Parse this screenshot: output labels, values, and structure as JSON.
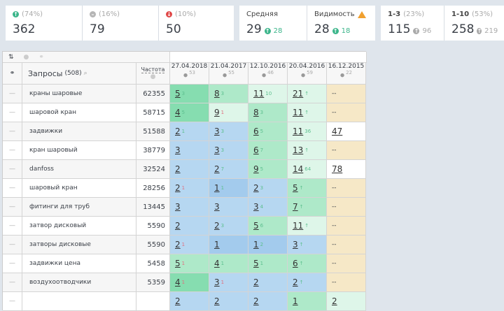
{
  "cards": [
    {
      "icon": "arrow-up-circle-icon",
      "color": "#3bb58a",
      "pct": "(74%)",
      "value": "362"
    },
    {
      "icon": "minus-circle-icon",
      "color": "#b5b5b5",
      "pct": "(16%)",
      "value": "79"
    },
    {
      "icon": "arrow-down-circle-icon",
      "color": "#e04848",
      "pct": "(10%)",
      "value": "50"
    },
    {
      "label": "Средняя",
      "value": "29",
      "sub": "28",
      "subcolor": "#3bb58a"
    },
    {
      "label": "Видимость",
      "value": "28",
      "sub": "18",
      "subcolor": "#3bb58a",
      "warning": true
    },
    {
      "label": "1-3",
      "pct": "(23%)",
      "value": "115",
      "sub": "96",
      "subcolor": "#aaa"
    },
    {
      "label": "1-10",
      "pct": "(53%)",
      "value": "258",
      "sub": "219",
      "subcolor": "#aaa"
    }
  ],
  "table": {
    "query_header": "Запросы",
    "query_count": "(508)",
    "freq_header": "Частота",
    "dates": [
      {
        "date": "27.04.2018",
        "n": "53"
      },
      {
        "date": "21.04.2017",
        "n": "55"
      },
      {
        "date": "12.10.2016",
        "n": "46"
      },
      {
        "date": "20.04.2016",
        "n": "59"
      },
      {
        "date": "16.12.2015",
        "n": "22"
      }
    ],
    "colors": {
      "dg": "#86ddb0",
      "mg": "#aee9c9",
      "lg": "#def6e9",
      "b": "#b6d7f1",
      "db": "#a3cbed",
      "t": "#f6e8c7",
      "w": "#ffffff"
    },
    "rows": [
      {
        "q": "краны шаровые",
        "f": "62355",
        "c": [
          [
            "5",
            "3",
            "up",
            "dg"
          ],
          [
            "8",
            "3",
            "up",
            "mg"
          ],
          [
            "11",
            "10",
            "up",
            "lg"
          ],
          [
            "21",
            "↑",
            "up",
            "lg"
          ],
          [
            "--",
            "",
            "",
            "t"
          ]
        ]
      },
      {
        "q": "шаровой кран",
        "f": "58715",
        "c": [
          [
            "4",
            "5",
            "up",
            "dg"
          ],
          [
            "9",
            "1",
            "dn",
            "lg"
          ],
          [
            "8",
            "3",
            "up",
            "mg"
          ],
          [
            "11",
            "↑",
            "up",
            "lg"
          ],
          [
            "--",
            "",
            "",
            "t"
          ]
        ]
      },
      {
        "q": "задвижки",
        "f": "51588",
        "c": [
          [
            "2",
            "1",
            "up",
            "b"
          ],
          [
            "3",
            "3",
            "up",
            "b"
          ],
          [
            "6",
            "5",
            "up",
            "mg"
          ],
          [
            "11",
            "36",
            "up",
            "lg"
          ],
          [
            "47",
            "",
            "",
            "w"
          ]
        ]
      },
      {
        "q": "кран шаровый",
        "f": "38779",
        "c": [
          [
            "3",
            "",
            "",
            "b"
          ],
          [
            "3",
            "3",
            "up",
            "b"
          ],
          [
            "6",
            "7",
            "up",
            "mg"
          ],
          [
            "13",
            "↑",
            "up",
            "lg"
          ],
          [
            "--",
            "",
            "",
            "t"
          ]
        ]
      },
      {
        "q": "danfoss",
        "f": "32524",
        "c": [
          [
            "2",
            "",
            "",
            "b"
          ],
          [
            "2",
            "7",
            "up",
            "b"
          ],
          [
            "9",
            "5",
            "up",
            "mg"
          ],
          [
            "14",
            "64",
            "up",
            "lg"
          ],
          [
            "78",
            "",
            "",
            "w"
          ]
        ]
      },
      {
        "q": "шаровый кран",
        "f": "28256",
        "c": [
          [
            "2",
            "1",
            "dn",
            "b"
          ],
          [
            "1",
            "1",
            "up",
            "db"
          ],
          [
            "2",
            "3",
            "up",
            "b"
          ],
          [
            "5",
            "↑",
            "up",
            "mg"
          ],
          [
            "--",
            "",
            "",
            "t"
          ]
        ]
      },
      {
        "q": "фитинги для труб",
        "f": "13445",
        "c": [
          [
            "3",
            "",
            "",
            "b"
          ],
          [
            "3",
            "",
            "",
            "b"
          ],
          [
            "3",
            "4",
            "up",
            "b"
          ],
          [
            "7",
            "↑",
            "up",
            "mg"
          ],
          [
            "--",
            "",
            "",
            "t"
          ]
        ]
      },
      {
        "q": "затвор дисковый",
        "f": "5590",
        "c": [
          [
            "2",
            "",
            "",
            "b"
          ],
          [
            "2",
            "3",
            "up",
            "b"
          ],
          [
            "5",
            "6",
            "up",
            "mg"
          ],
          [
            "11",
            "↑",
            "up",
            "lg"
          ],
          [
            "--",
            "",
            "",
            "t"
          ]
        ]
      },
      {
        "q": "затворы дисковые",
        "f": "5590",
        "c": [
          [
            "2",
            "1",
            "dn",
            "b"
          ],
          [
            "1",
            "",
            "",
            "db"
          ],
          [
            "1",
            "2",
            "up",
            "db"
          ],
          [
            "3",
            "↑",
            "up",
            "b"
          ],
          [
            "--",
            "",
            "",
            "t"
          ]
        ]
      },
      {
        "q": "задвижки цена",
        "f": "5458",
        "c": [
          [
            "5",
            "1",
            "dn",
            "mg"
          ],
          [
            "4",
            "1",
            "up",
            "mg"
          ],
          [
            "5",
            "1",
            "up",
            "mg"
          ],
          [
            "6",
            "↑",
            "up",
            "mg"
          ],
          [
            "--",
            "",
            "",
            "t"
          ]
        ]
      },
      {
        "q": "воздухоотводчики",
        "f": "5359",
        "c": [
          [
            "4",
            "1",
            "dn",
            "dg"
          ],
          [
            "3",
            "1",
            "dn",
            "b"
          ],
          [
            "2",
            "",
            "",
            "b"
          ],
          [
            "2",
            "↑",
            "up",
            "b"
          ],
          [
            "--",
            "",
            "",
            "t"
          ]
        ]
      },
      {
        "q": "",
        "f": "",
        "c": [
          [
            "2",
            "",
            "",
            "b"
          ],
          [
            "2",
            "",
            "",
            "b"
          ],
          [
            "2",
            "",
            "",
            "b"
          ],
          [
            "1",
            "",
            "",
            "mg"
          ],
          [
            "2",
            "",
            "",
            "lg"
          ]
        ]
      }
    ]
  }
}
